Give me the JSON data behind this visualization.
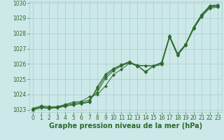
{
  "xlabel": "Graphe pression niveau de la mer (hPa)",
  "x": [
    0,
    1,
    2,
    3,
    4,
    5,
    6,
    7,
    8,
    9,
    10,
    11,
    12,
    13,
    14,
    15,
    16,
    17,
    18,
    19,
    20,
    21,
    22,
    23
  ],
  "series": [
    [
      1023.1,
      1023.25,
      1023.2,
      1023.2,
      1023.35,
      1023.5,
      1023.55,
      1023.85,
      1024.0,
      1024.55,
      1025.3,
      1025.65,
      1026.05,
      1025.85,
      1025.9,
      1025.85,
      1025.95,
      1027.75,
      1026.55,
      1027.25,
      1028.3,
      1029.1,
      1029.65,
      1029.72
    ],
    [
      1023.05,
      1023.2,
      1023.15,
      1023.18,
      1023.3,
      1023.42,
      1023.48,
      1023.65,
      1024.15,
      1025.05,
      1025.55,
      1025.88,
      1026.08,
      1025.92,
      1025.88,
      1025.88,
      1026.02,
      1027.78,
      1026.58,
      1027.22,
      1028.35,
      1029.18,
      1029.72,
      1029.78
    ],
    [
      1023.0,
      1023.15,
      1023.1,
      1023.15,
      1023.25,
      1023.35,
      1023.42,
      1023.55,
      1024.35,
      1025.2,
      1025.65,
      1025.92,
      1026.12,
      1025.9,
      1025.5,
      1025.88,
      1026.08,
      1027.82,
      1026.65,
      1027.28,
      1028.38,
      1029.22,
      1029.78,
      1029.83
    ],
    [
      1023.0,
      1023.12,
      1023.08,
      1023.12,
      1023.22,
      1023.32,
      1023.4,
      1023.48,
      1024.5,
      1025.32,
      1025.7,
      1025.95,
      1026.15,
      1025.88,
      1025.45,
      1025.88,
      1026.1,
      1027.85,
      1026.68,
      1027.3,
      1028.42,
      1029.25,
      1029.82,
      1029.88
    ]
  ],
  "line_color": "#2d6a2d",
  "marker": "D",
  "marker_size": 2.2,
  "bg_color": "#cce8e8",
  "grid_color": "#aacccc",
  "ylim": [
    1022.85,
    1030.1
  ],
  "yticks": [
    1023,
    1024,
    1025,
    1026,
    1027,
    1028,
    1029,
    1030
  ],
  "xticks": [
    0,
    1,
    2,
    3,
    4,
    5,
    6,
    7,
    8,
    9,
    10,
    11,
    12,
    13,
    14,
    15,
    16,
    17,
    18,
    19,
    20,
    21,
    22,
    23
  ],
  "tick_fontsize": 5.5,
  "label_fontsize": 7,
  "label_color": "#2d6a2d",
  "label_fontweight": "bold"
}
